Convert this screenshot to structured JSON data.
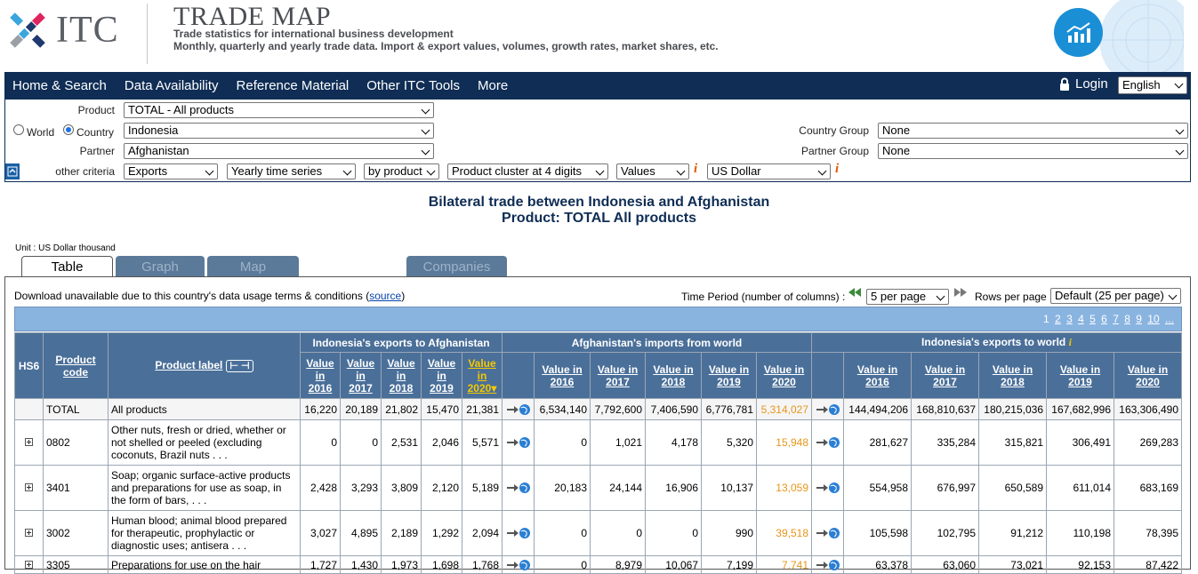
{
  "header": {
    "itc_wordmark": "ITC",
    "title": "TRADE MAP",
    "subtitle1": "Trade statistics for international business development",
    "subtitle2": "Monthly, quarterly and yearly trade data. Import & export values, volumes, growth rates, market shares, etc."
  },
  "nav": {
    "items": [
      "Home & Search",
      "Data Availability",
      "Reference Material",
      "Other ITC Tools",
      "More"
    ],
    "login": "Login",
    "language": "English"
  },
  "criteria": {
    "product_label": "Product",
    "product_value": "TOTAL - All products",
    "world_label": "World",
    "country_label": "Country",
    "country_value": "Indonesia",
    "partner_label": "Partner",
    "partner_value": "Afghanistan",
    "country_group_label": "Country Group",
    "country_group_value": "None",
    "partner_group_label": "Partner Group",
    "partner_group_value": "None",
    "other_criteria_label": "other criteria",
    "flow": "Exports",
    "series": "Yearly time series",
    "by": "by product",
    "cluster": "Product cluster at 4 digits",
    "measure": "Values",
    "currency": "US Dollar"
  },
  "page": {
    "title1": "Bilateral trade between Indonesia and Afghanistan",
    "title2": "Product: TOTAL All products",
    "unit": "Unit : US Dollar thousand"
  },
  "tabs": [
    "Table",
    "Graph",
    "Map",
    "Companies"
  ],
  "toolbar": {
    "download_note": "Download unavailable due to this country's data usage terms & conditions (",
    "source_link": "source",
    "download_note_end": ")",
    "time_period_label": "Time Period (number of columns) :",
    "per_page": "5 per page",
    "rows_label": "Rows per page",
    "rows_value": "Default (25 per page)",
    "pages": [
      "1",
      "2",
      "3",
      "4",
      "5",
      "6",
      "7",
      "8",
      "9",
      "10",
      "..."
    ]
  },
  "table": {
    "hs6": "HS6",
    "product_code": "Product code",
    "product_label": "Product label",
    "group1": "Indonesia's exports to Afghanistan",
    "group2": "Afghanistan's imports from world",
    "group3": "Indonesia's exports to world",
    "years": [
      "Value in 2016",
      "Value in 2017",
      "Value in 2018",
      "Value in 2019",
      "Value in 2020"
    ],
    "rows": [
      {
        "code": "TOTAL",
        "label": "All products",
        "a": [
          "16,220",
          "20,189",
          "21,802",
          "15,470",
          "21,381"
        ],
        "b": [
          "6,534,140",
          "7,792,600",
          "7,406,590",
          "6,776,781",
          "5,314,027"
        ],
        "c": [
          "144,494,206",
          "168,810,637",
          "180,215,036",
          "167,682,996",
          "163,306,490"
        ]
      },
      {
        "code": "0802",
        "label": "Other nuts, fresh or dried, whether or not shelled or peeled (excluding coconuts, Brazil nuts . . .",
        "a": [
          "0",
          "0",
          "2,531",
          "2,046",
          "5,571"
        ],
        "b": [
          "0",
          "1,021",
          "4,178",
          "5,320",
          "15,948"
        ],
        "c": [
          "281,627",
          "335,284",
          "315,821",
          "306,491",
          "269,283"
        ]
      },
      {
        "code": "3401",
        "label": "Soap; organic surface-active products and preparations for use as soap, in the form of bars, . . .",
        "a": [
          "2,428",
          "3,293",
          "3,809",
          "2,120",
          "5,189"
        ],
        "b": [
          "20,183",
          "24,144",
          "16,906",
          "10,137",
          "13,059"
        ],
        "c": [
          "554,958",
          "676,997",
          "650,589",
          "611,014",
          "683,169"
        ]
      },
      {
        "code": "3002",
        "label": "Human blood; animal blood prepared for therapeutic, prophylactic or diagnostic uses; antisera . . .",
        "a": [
          "3,027",
          "4,895",
          "2,189",
          "1,292",
          "2,094"
        ],
        "b": [
          "0",
          "0",
          "0",
          "990",
          "39,518"
        ],
        "c": [
          "105,598",
          "102,795",
          "91,212",
          "110,198",
          "78,395"
        ]
      },
      {
        "code": "3305",
        "label": "Preparations for use on the hair",
        "a": [
          "1,727",
          "1,430",
          "1,973",
          "1,698",
          "1,768"
        ],
        "b": [
          "0",
          "8,979",
          "10,067",
          "7,199",
          "7,741"
        ],
        "c": [
          "63,378",
          "63,060",
          "73,021",
          "92,153",
          "87,422"
        ]
      }
    ]
  }
}
